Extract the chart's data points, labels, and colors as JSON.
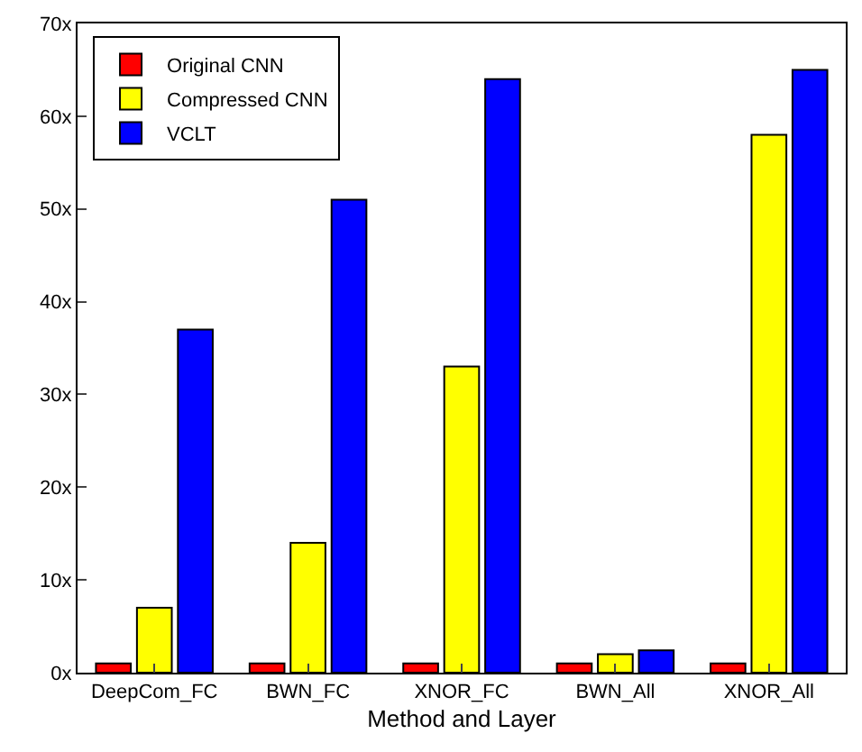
{
  "chart_data": {
    "type": "bar",
    "xlabel": "Method and Layer",
    "categories": [
      "DeepCom_FC",
      "BWN_FC",
      "XNOR_FC",
      "BWN_All",
      "XNOR_All"
    ],
    "series": [
      {
        "name": "Original CNN",
        "color": "#ff0000",
        "values": [
          1,
          1,
          1,
          1,
          1
        ]
      },
      {
        "name": "Compressed CNN",
        "color": "#ffff00",
        "values": [
          7,
          14,
          33,
          2,
          58
        ]
      },
      {
        "name": "VCLT",
        "color": "#0000ff",
        "values": [
          37,
          51,
          64,
          2.4,
          65
        ]
      }
    ],
    "ylim": [
      0,
      70
    ],
    "yticks": [
      {
        "value": 0,
        "label": "0x"
      },
      {
        "value": 10,
        "label": "10x"
      },
      {
        "value": 20,
        "label": "20x"
      },
      {
        "value": 30,
        "label": "30x"
      },
      {
        "value": 40,
        "label": "40x"
      },
      {
        "value": 50,
        "label": "50x"
      },
      {
        "value": 60,
        "label": "60x"
      },
      {
        "value": 70,
        "label": "70x"
      }
    ],
    "legend": "top left"
  }
}
